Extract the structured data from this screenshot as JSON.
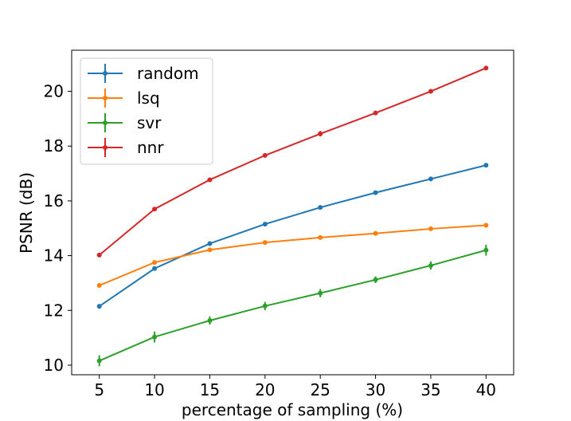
{
  "chart_data": {
    "type": "line",
    "title": "",
    "xlabel": "percentage of sampling (%)",
    "ylabel": "PSNR (dB)",
    "x": [
      5,
      10,
      15,
      20,
      25,
      30,
      35,
      40
    ],
    "xticks": [
      5,
      10,
      15,
      20,
      25,
      30,
      35,
      40
    ],
    "yticks": [
      10,
      12,
      14,
      16,
      18,
      20
    ],
    "xlim": [
      2.5,
      42.5
    ],
    "ylim": [
      9.65,
      21.5
    ],
    "grid": false,
    "legend_position": "top-left",
    "error_bars": true,
    "series": [
      {
        "name": "random",
        "color": "#1f77b4",
        "values": [
          12.15,
          13.53,
          14.44,
          15.15,
          15.76,
          16.3,
          16.8,
          17.3
        ],
        "errors": [
          0.08,
          0.08,
          0.08,
          0.08,
          0.08,
          0.08,
          0.08,
          0.08
        ]
      },
      {
        "name": "lsq",
        "color": "#ff7f0e",
        "values": [
          12.91,
          13.75,
          14.21,
          14.48,
          14.66,
          14.81,
          14.98,
          15.11
        ],
        "errors": [
          0.05,
          0.05,
          0.05,
          0.05,
          0.05,
          0.05,
          0.05,
          0.05
        ]
      },
      {
        "name": "svr",
        "color": "#2ca02c",
        "values": [
          10.16,
          11.03,
          11.63,
          12.16,
          12.63,
          13.12,
          13.64,
          14.2
        ],
        "errors": [
          0.2,
          0.2,
          0.15,
          0.15,
          0.15,
          0.12,
          0.15,
          0.2
        ]
      },
      {
        "name": "nnr",
        "color": "#d62728",
        "values": [
          14.02,
          15.7,
          16.77,
          17.66,
          18.45,
          19.21,
          20.0,
          20.85
        ],
        "errors": [
          0.05,
          0.05,
          0.07,
          0.08,
          0.1,
          0.08,
          0.05,
          0.05
        ]
      }
    ]
  }
}
